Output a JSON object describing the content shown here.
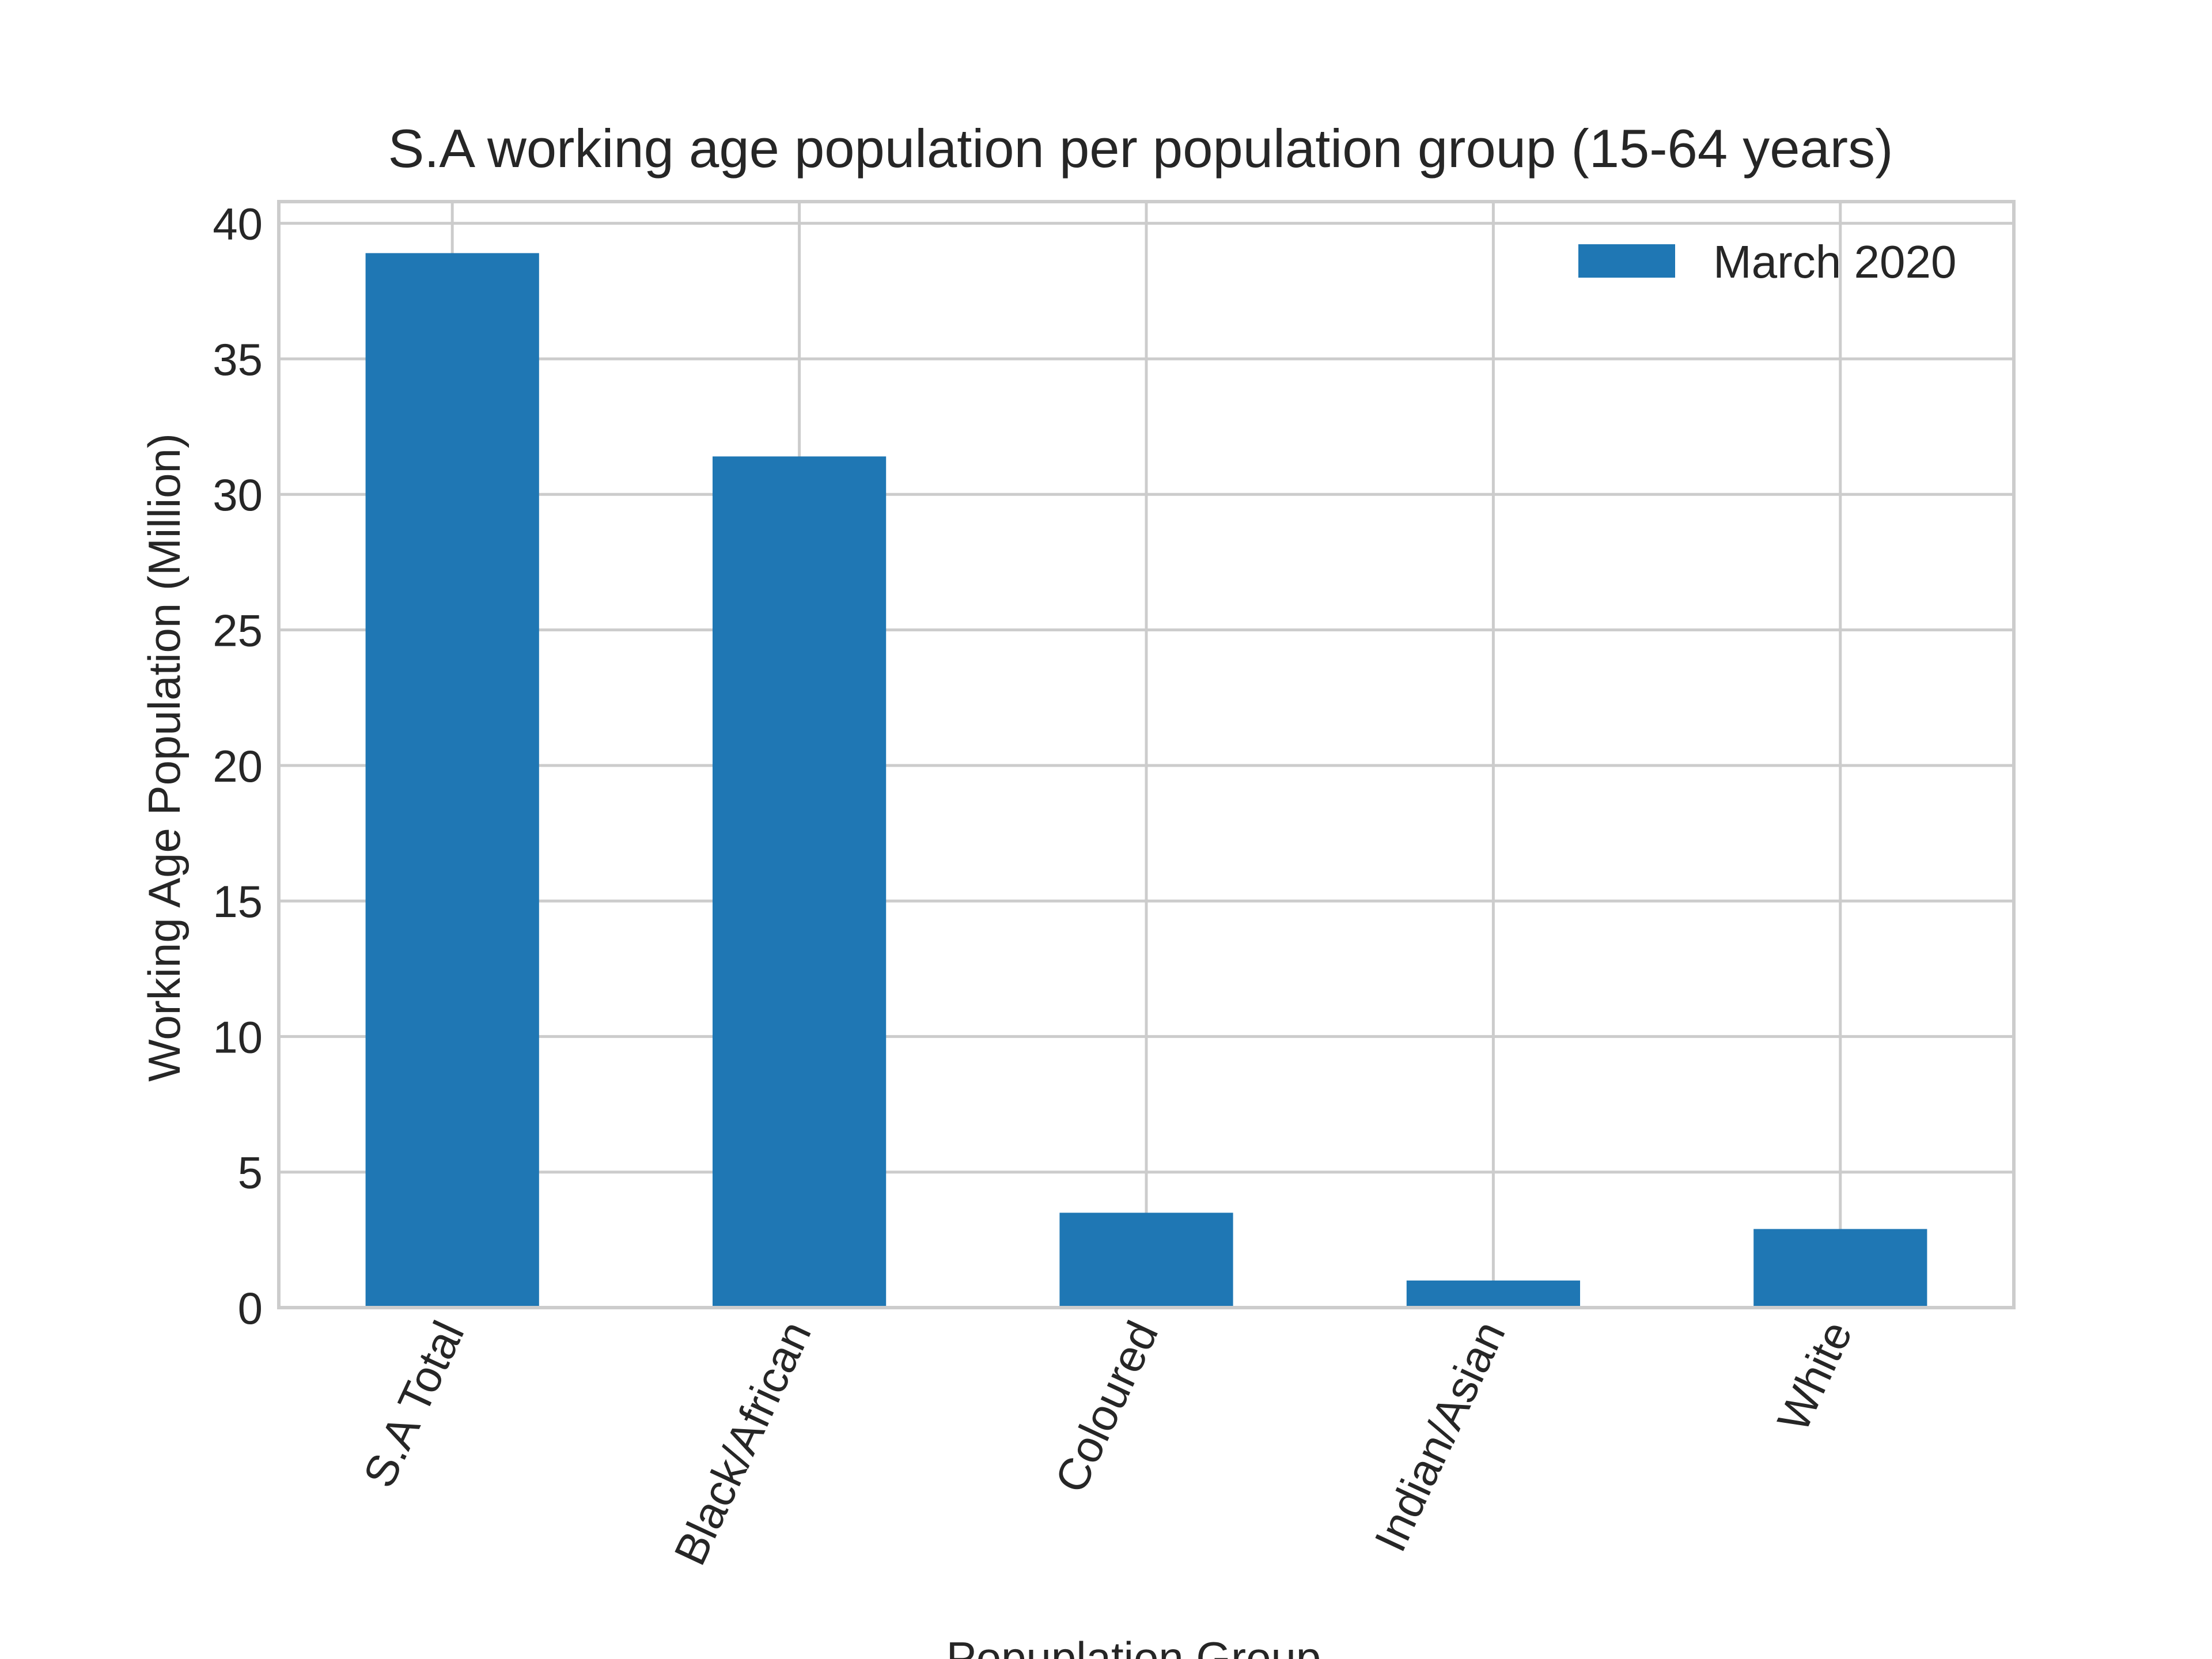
{
  "chart_data": {
    "type": "bar",
    "title": "S.A working age population per population group (15-64 years)",
    "xlabel": "Popuplation Group",
    "ylabel": "Working Age Population (Million)",
    "categories": [
      "S.A Total",
      "Black/African",
      "Coloured",
      "Indian/Asian",
      "White"
    ],
    "series": [
      {
        "name": "March 2020",
        "values": [
          38.9,
          31.4,
          3.5,
          1.0,
          2.9
        ]
      }
    ],
    "ylim": [
      0,
      40.8
    ],
    "yticks": [
      0,
      5,
      10,
      15,
      20,
      25,
      30,
      35,
      40
    ],
    "grid": true,
    "legend_position": "top-right",
    "colors": {
      "bar": "#1f77b4",
      "grid": "#cccccc",
      "text": "#262626"
    }
  }
}
